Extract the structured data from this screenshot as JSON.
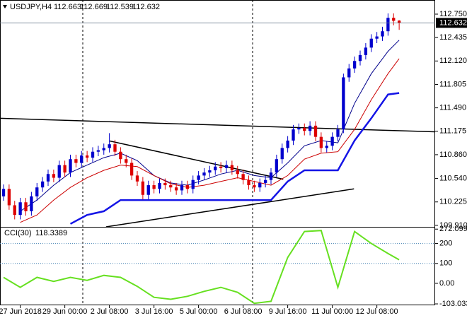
{
  "chart_data": [
    {
      "type": "candlestick",
      "title": "USDJPY,H4",
      "up_color": "#0000cd",
      "down_color": "#dd0000",
      "open": [
        110.3,
        110.4,
        110.18,
        110.05,
        110.22,
        110.1,
        110.3,
        110.42,
        110.5,
        110.6,
        110.55,
        110.72,
        110.62,
        110.8,
        110.75,
        110.85,
        110.82,
        110.9,
        110.92,
        110.95,
        111.0,
        110.9,
        110.8,
        110.75,
        110.58,
        110.5,
        110.32,
        110.45,
        110.4,
        110.48,
        110.45,
        110.42,
        110.38,
        110.45,
        110.4,
        110.52,
        110.58,
        110.62,
        110.65,
        110.7,
        110.68,
        110.72,
        110.65,
        110.6,
        110.52,
        110.45,
        110.42,
        110.48,
        110.52,
        110.62,
        110.8,
        110.95,
        111.05,
        111.2,
        111.22,
        111.18,
        111.25,
        111.1,
        110.95,
        110.98,
        111.1,
        111.2,
        111.9,
        112.02,
        112.12,
        112.2,
        112.3,
        112.42,
        112.45,
        112.52,
        112.7,
        112.663
      ],
      "high": [
        110.46,
        110.46,
        110.24,
        110.28,
        110.28,
        110.36,
        110.48,
        110.56,
        110.66,
        110.66,
        110.78,
        110.78,
        110.86,
        110.86,
        110.91,
        110.91,
        110.96,
        110.98,
        111.01,
        111.15,
        111.06,
        110.96,
        110.86,
        110.81,
        110.64,
        110.56,
        110.51,
        110.51,
        110.54,
        110.54,
        110.51,
        110.48,
        110.51,
        110.51,
        110.58,
        110.64,
        110.68,
        110.71,
        110.76,
        110.76,
        110.78,
        110.78,
        110.71,
        110.66,
        110.58,
        110.51,
        110.54,
        110.58,
        110.68,
        110.86,
        111.01,
        111.11,
        111.26,
        111.28,
        111.28,
        111.31,
        111.31,
        111.16,
        111.04,
        111.16,
        111.26,
        111.95,
        112.08,
        112.18,
        112.26,
        112.36,
        112.48,
        112.51,
        112.58,
        112.76,
        112.76,
        112.669
      ],
      "low": [
        110.24,
        110.12,
        109.99,
        109.99,
        110.04,
        110.04,
        110.24,
        110.36,
        110.44,
        110.49,
        110.49,
        110.56,
        110.56,
        110.69,
        110.69,
        110.76,
        110.76,
        110.84,
        110.86,
        110.89,
        110.84,
        110.74,
        110.69,
        110.52,
        110.44,
        110.26,
        110.26,
        110.34,
        110.34,
        110.39,
        110.36,
        110.32,
        110.32,
        110.34,
        110.34,
        110.46,
        110.52,
        110.56,
        110.59,
        110.62,
        110.62,
        110.59,
        110.54,
        110.46,
        110.39,
        110.36,
        110.36,
        110.42,
        110.46,
        110.56,
        110.74,
        110.89,
        110.99,
        111.14,
        111.12,
        111.12,
        111.04,
        110.89,
        110.89,
        110.92,
        111.04,
        111.15,
        111.84,
        111.96,
        112.06,
        112.14,
        112.24,
        112.36,
        112.39,
        112.46,
        112.6,
        112.539
      ],
      "close": [
        110.4,
        110.18,
        110.05,
        110.22,
        110.1,
        110.3,
        110.42,
        110.5,
        110.6,
        110.55,
        110.72,
        110.62,
        110.8,
        110.75,
        110.85,
        110.82,
        110.9,
        110.92,
        110.95,
        111.0,
        110.9,
        110.8,
        110.75,
        110.58,
        110.5,
        110.32,
        110.45,
        110.4,
        110.48,
        110.45,
        110.42,
        110.38,
        110.45,
        110.4,
        110.52,
        110.58,
        110.62,
        110.65,
        110.7,
        110.68,
        110.72,
        110.65,
        110.6,
        110.52,
        110.45,
        110.42,
        110.48,
        110.52,
        110.62,
        110.8,
        110.95,
        111.05,
        111.2,
        111.22,
        111.18,
        111.25,
        111.1,
        110.95,
        110.98,
        111.1,
        111.2,
        111.9,
        112.02,
        112.12,
        112.2,
        112.3,
        112.42,
        112.45,
        112.52,
        112.7,
        112.66,
        112.632
      ],
      "lines": [
        {
          "color": "#00008b",
          "width": 1,
          "x": [
            0,
            3,
            6,
            9,
            12,
            15,
            18,
            21,
            24,
            27,
            30,
            33,
            36,
            39,
            42,
            45,
            48,
            51,
            54,
            57,
            60,
            63,
            66,
            69,
            71
          ],
          "values": [
            null,
            110.1,
            110.25,
            110.45,
            110.62,
            110.72,
            110.82,
            110.88,
            110.78,
            110.58,
            110.48,
            110.45,
            110.52,
            110.6,
            110.65,
            110.58,
            110.55,
            110.75,
            110.98,
            111.05,
            111.02,
            111.55,
            111.95,
            112.25,
            112.4
          ]
        },
        {
          "color": "#cc0000",
          "width": 1,
          "x": [
            0,
            3,
            6,
            9,
            12,
            15,
            18,
            21,
            24,
            27,
            30,
            33,
            36,
            39,
            42,
            45,
            48,
            51,
            54,
            57,
            60,
            63,
            66,
            69,
            71
          ],
          "values": [
            null,
            109.95,
            110.05,
            110.25,
            110.42,
            110.55,
            110.65,
            110.72,
            110.7,
            110.58,
            110.47,
            110.42,
            110.45,
            110.5,
            110.55,
            110.5,
            110.45,
            110.58,
            110.8,
            110.88,
            110.9,
            111.2,
            111.6,
            111.95,
            112.15
          ]
        },
        {
          "color": "#1414e6",
          "width": 2.5,
          "x": [
            0,
            3,
            6,
            9,
            12,
            15,
            18,
            21,
            24,
            27,
            30,
            33,
            36,
            39,
            42,
            45,
            48,
            51,
            54,
            57,
            60,
            63,
            66,
            69,
            71
          ],
          "values": [
            null,
            null,
            null,
            null,
            109.93,
            110.05,
            110.1,
            110.25,
            110.25,
            110.25,
            110.25,
            110.25,
            110.25,
            110.25,
            110.25,
            110.25,
            110.25,
            110.5,
            110.65,
            110.65,
            110.65,
            111.05,
            111.35,
            111.67,
            111.69
          ]
        }
      ],
      "trendlines": [
        {
          "x": [
            -0.6,
            77.4
          ],
          "values": [
            111.349,
            111.168
          ]
        },
        {
          "x": [
            19.05,
            50.2
          ],
          "values": [
            111.044,
            110.53
          ]
        },
        {
          "x": [
            18.4,
            62.9
          ],
          "values": [
            109.89,
            110.4
          ]
        }
      ],
      "xlim": [
        -0.635,
        77.46
      ],
      "xticks": [
        {
          "value": 3,
          "label": "27 Jun 2018"
        },
        {
          "value": 11,
          "label": "29 Jun 00:00"
        },
        {
          "value": 19,
          "label": "2 Jul 08:00"
        },
        {
          "value": 27,
          "label": "3 Jul 16:00"
        },
        {
          "value": 35,
          "label": "5 Jul 00:00"
        },
        {
          "value": 43,
          "label": "6 Jul 08:00"
        },
        {
          "value": 51,
          "label": "9 Jul 16:00"
        },
        {
          "value": 59,
          "label": "11 Jul 00:00"
        },
        {
          "value": 67,
          "label": "12 Jul 08:00"
        }
      ],
      "ylim": [
        109.89,
        112.94
      ],
      "yticks": [
        {
          "value": 109.91,
          "label": "109.910"
        },
        {
          "value": 110.225,
          "label": "110.225"
        },
        {
          "value": 110.54,
          "label": "110.540"
        },
        {
          "value": 110.86,
          "label": "110.860"
        },
        {
          "value": 111.175,
          "label": "111.175"
        },
        {
          "value": 111.49,
          "label": "111.490"
        },
        {
          "value": 111.805,
          "label": "111.805"
        },
        {
          "value": 112.12,
          "label": "112.120"
        },
        {
          "value": 112.435,
          "label": "112.435"
        },
        {
          "value": 112.75,
          "label": "112.750"
        }
      ]
    },
    {
      "type": "line",
      "title": "CCI(30)",
      "color": "#66e020",
      "x": [
        0,
        3,
        6,
        9,
        12,
        15,
        18,
        21,
        24,
        27,
        30,
        33,
        36,
        39,
        42,
        45,
        48,
        51,
        54,
        57,
        60,
        63,
        66,
        69,
        71
      ],
      "values": [
        30,
        -20,
        30,
        10,
        30,
        15,
        40,
        30,
        -15,
        -70,
        -80,
        -65,
        -40,
        -20,
        -45,
        -100,
        -90,
        130,
        260,
        265,
        -20,
        260,
        200,
        150,
        118.3389
      ],
      "xlim": [
        -0.635,
        77.46
      ],
      "ylim": [
        -110,
        280
      ],
      "yticks": [
        272.0994,
        200,
        100,
        {
          "value": 0,
          "label": "0.00"
        },
        -103.0336
      ],
      "levels": [
        200,
        100
      ],
      "level_color": "#4682b4"
    }
  ]
}
